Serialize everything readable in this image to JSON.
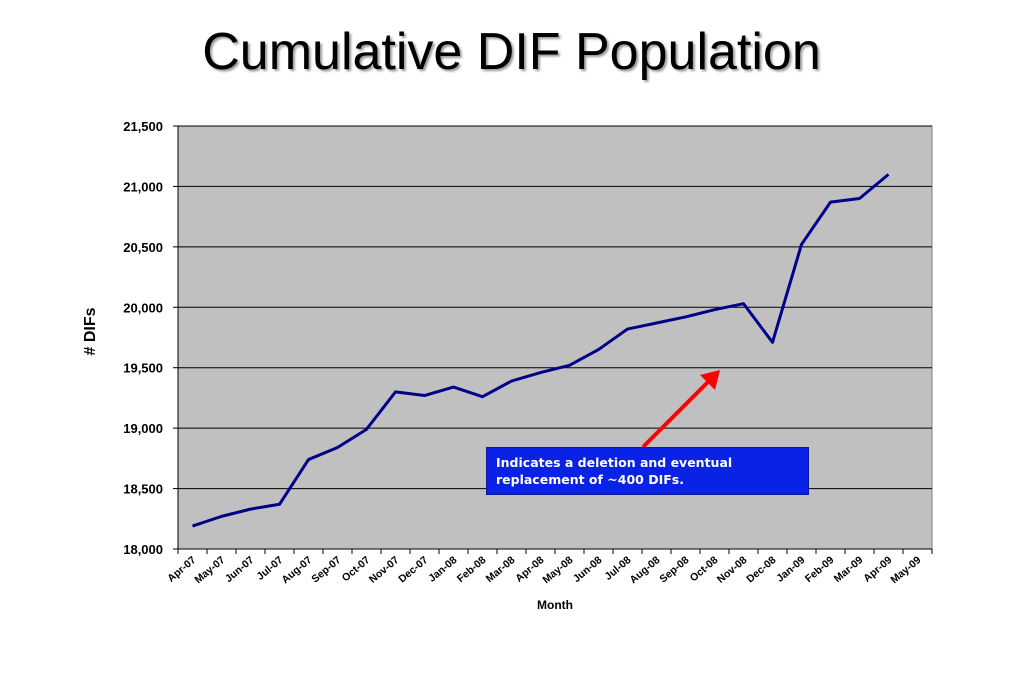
{
  "slide": {
    "title": "Cumulative DIF Population"
  },
  "annotation": {
    "text": "Indicates a deletion and eventual replacement of ~400 DIFs.",
    "arrow_color": "#ff0000",
    "box_color": "#0a22e6"
  },
  "chart_data": {
    "type": "line",
    "title": "Cumulative DIF Population",
    "xlabel": "Month",
    "ylabel": "# DIFs",
    "ylim": [
      18000,
      21500
    ],
    "yticks": [
      18000,
      18500,
      19000,
      19500,
      20000,
      20500,
      21000,
      21500
    ],
    "ytick_labels": [
      "18,000",
      "18,500",
      "19,000",
      "19,500",
      "20,000",
      "20,500",
      "21,000",
      "21,500"
    ],
    "categories": [
      "Apr-07",
      "May-07",
      "Jun-07",
      "Jul-07",
      "Aug-07",
      "Sep-07",
      "Oct-07",
      "Nov-07",
      "Dec-07",
      "Jan-08",
      "Feb-08",
      "Mar-08",
      "Apr-08",
      "May-08",
      "Jun-08",
      "Jul-08",
      "Aug-08",
      "Sep-08",
      "Oct-08",
      "Nov-08",
      "Dec-08",
      "Jan-09",
      "Feb-09",
      "Mar-09",
      "Apr-09",
      "May-09"
    ],
    "series": [
      {
        "color": "#00008b",
        "values": [
          18190,
          18270,
          18330,
          18370,
          18740,
          18840,
          18990,
          19300,
          19270,
          19340,
          19260,
          19390,
          19460,
          19520,
          19650,
          19820,
          19870,
          19920,
          19980,
          20030,
          19710,
          20520,
          20870,
          20900,
          21100,
          null
        ]
      }
    ],
    "grid": true,
    "grid_axis": "y",
    "plot_background": "#c0c0c0",
    "legend": "none"
  }
}
